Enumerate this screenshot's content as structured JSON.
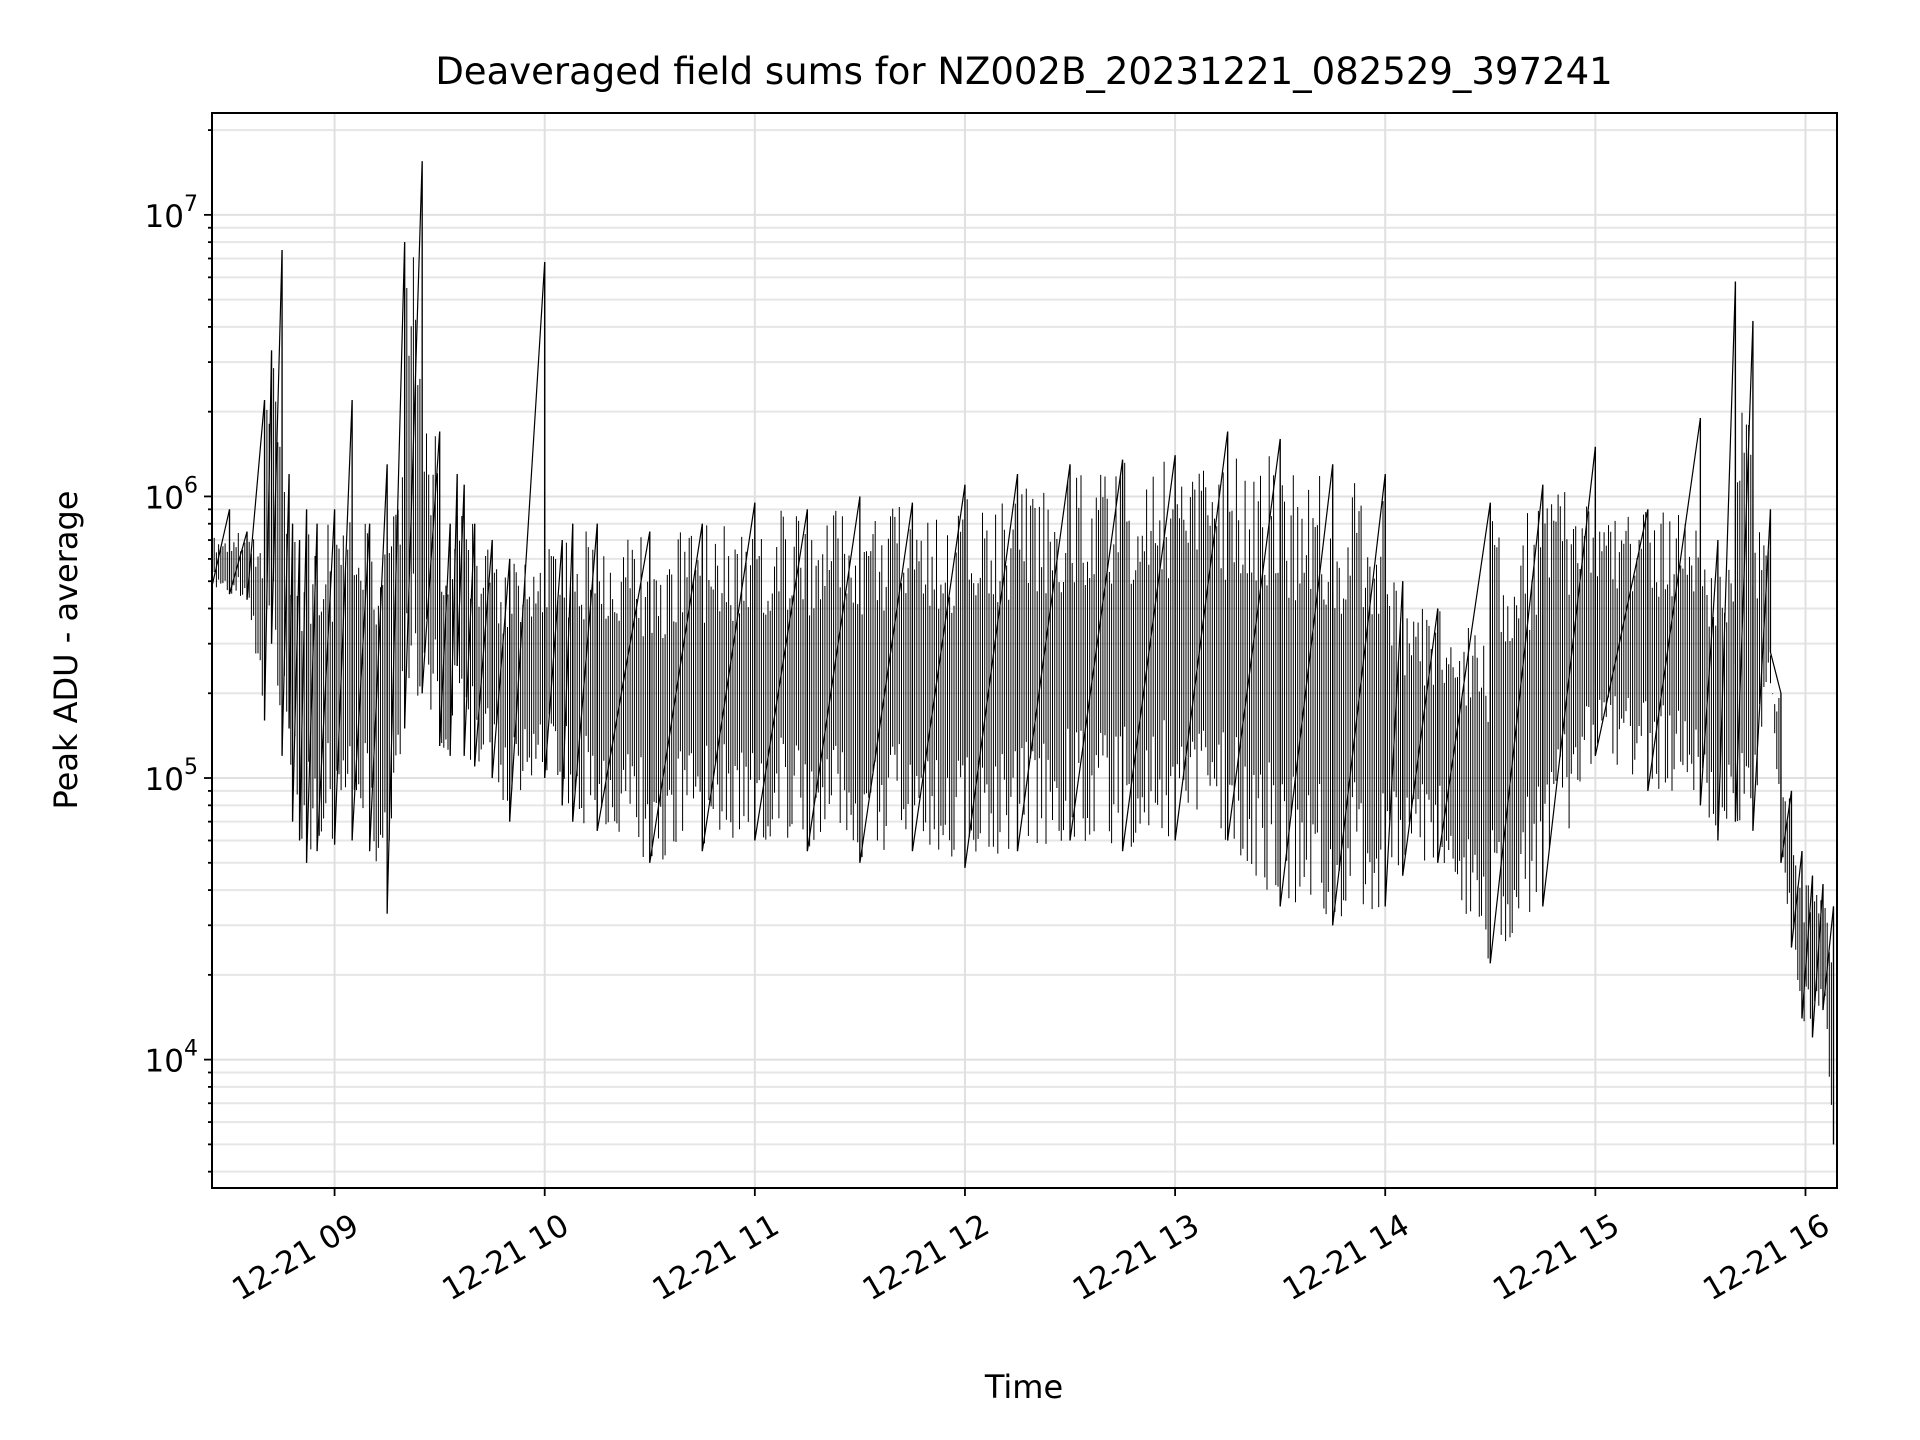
{
  "chart_data": {
    "type": "line",
    "title": "Deaveraged field sums for NZ002B_20231221_082529_397241",
    "xlabel": "Time",
    "ylabel": "Peak ADU - average",
    "yscale": "log",
    "ylim": [
      3500,
      23000000
    ],
    "xlim": [
      "2023-12-21 08:25",
      "2023-12-21 16:09"
    ],
    "grid": true,
    "series_color": "#000000",
    "x_ticks": [
      {
        "value": "2023-12-21 09:00",
        "label": "12-21 09"
      },
      {
        "value": "2023-12-21 10:00",
        "label": "12-21 10"
      },
      {
        "value": "2023-12-21 11:00",
        "label": "12-21 11"
      },
      {
        "value": "2023-12-21 12:00",
        "label": "12-21 12"
      },
      {
        "value": "2023-12-21 13:00",
        "label": "12-21 13"
      },
      {
        "value": "2023-12-21 14:00",
        "label": "12-21 14"
      },
      {
        "value": "2023-12-21 15:00",
        "label": "12-21 15"
      },
      {
        "value": "2023-12-21 16:00",
        "label": "12-21 16"
      }
    ],
    "y_ticks": [
      {
        "value": 10000,
        "base": "10",
        "exp": "4"
      },
      {
        "value": 100000,
        "base": "10",
        "exp": "5"
      },
      {
        "value": 1000000,
        "base": "10",
        "exp": "6"
      },
      {
        "value": 10000000,
        "base": "10",
        "exp": "7"
      }
    ],
    "x": [
      "2023-12-21 08:25",
      "2023-12-21 08:30",
      "2023-12-21 08:35",
      "2023-12-21 08:40",
      "2023-12-21 08:42",
      "2023-12-21 08:45",
      "2023-12-21 08:47",
      "2023-12-21 08:48",
      "2023-12-21 08:50",
      "2023-12-21 08:52",
      "2023-12-21 08:55",
      "2023-12-21 09:00",
      "2023-12-21 09:05",
      "2023-12-21 09:10",
      "2023-12-21 09:15",
      "2023-12-21 09:20",
      "2023-12-21 09:25",
      "2023-12-21 09:30",
      "2023-12-21 09:33",
      "2023-12-21 09:35",
      "2023-12-21 09:37",
      "2023-12-21 09:40",
      "2023-12-21 09:45",
      "2023-12-21 09:50",
      "2023-12-21 10:00",
      "2023-12-21 10:05",
      "2023-12-21 10:08",
      "2023-12-21 10:15",
      "2023-12-21 10:30",
      "2023-12-21 10:45",
      "2023-12-21 11:00",
      "2023-12-21 11:15",
      "2023-12-21 11:30",
      "2023-12-21 11:45",
      "2023-12-21 12:00",
      "2023-12-21 12:15",
      "2023-12-21 12:30",
      "2023-12-21 12:45",
      "2023-12-21 13:00",
      "2023-12-21 13:15",
      "2023-12-21 13:30",
      "2023-12-21 13:45",
      "2023-12-21 14:00",
      "2023-12-21 14:05",
      "2023-12-21 14:15",
      "2023-12-21 14:30",
      "2023-12-21 14:45",
      "2023-12-21 15:00",
      "2023-12-21 15:15",
      "2023-12-21 15:30",
      "2023-12-21 15:35",
      "2023-12-21 15:40",
      "2023-12-21 15:45",
      "2023-12-21 15:50",
      "2023-12-21 15:53",
      "2023-12-21 15:56",
      "2023-12-21 15:59",
      "2023-12-21 16:02",
      "2023-12-21 16:05",
      "2023-12-21 16:08"
    ],
    "y_low": [
      480000,
      450000,
      430000,
      160000,
      300000,
      120000,
      150000,
      70000,
      60000,
      50000,
      55000,
      58000,
      60000,
      55000,
      33000,
      150000,
      200000,
      130000,
      120000,
      250000,
      120000,
      110000,
      100000,
      70000,
      100000,
      80000,
      70000,
      65000,
      50000,
      55000,
      60000,
      55000,
      50000,
      55000,
      48000,
      55000,
      60000,
      55000,
      60000,
      60000,
      35000,
      30000,
      35000,
      45000,
      50000,
      22000,
      35000,
      120000,
      90000,
      80000,
      60000,
      70000,
      65000,
      280000,
      50000,
      25000,
      14000,
      12000,
      15000,
      5000
    ],
    "y_high": [
      720000,
      900000,
      750000,
      2200000,
      3300000,
      7500000,
      1200000,
      800000,
      700000,
      900000,
      800000,
      900000,
      2200000,
      800000,
      1300000,
      8000000,
      15500000,
      1700000,
      800000,
      1200000,
      1100000,
      800000,
      700000,
      600000,
      6800000,
      700000,
      800000,
      800000,
      750000,
      800000,
      950000,
      900000,
      1000000,
      950000,
      1100000,
      1200000,
      1300000,
      1350000,
      1400000,
      1700000,
      1600000,
      1300000,
      1200000,
      500000,
      400000,
      950000,
      1100000,
      1500000,
      900000,
      1900000,
      700000,
      5800000,
      4200000,
      900000,
      200000,
      90000,
      55000,
      45000,
      42000,
      35000
    ]
  }
}
